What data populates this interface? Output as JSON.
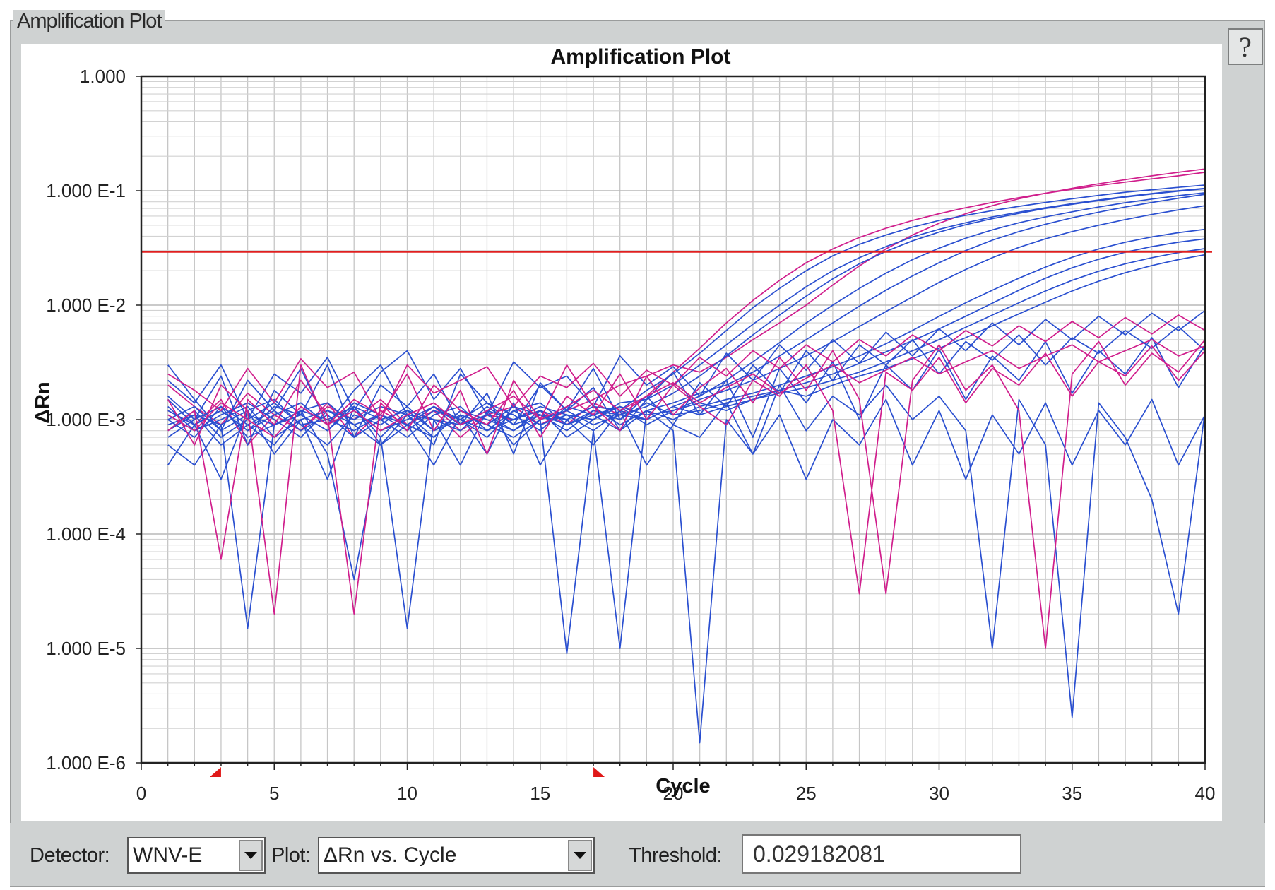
{
  "window": {
    "title": "Amplification Plot",
    "help_label": "?"
  },
  "controls": {
    "detector_label": "Detector:",
    "detector_value": "WNV-E",
    "plot_label": "Plot:",
    "plot_value": "ΔRn vs. Cycle",
    "threshold_label": "Threshold:",
    "threshold_value": "0.029182081"
  },
  "chart_data": {
    "type": "line",
    "title": "Amplification Plot",
    "xlabel": "Cycle",
    "ylabel": "ΔRn",
    "xlim": [
      0,
      40
    ],
    "ylim": [
      1e-06,
      1
    ],
    "yscale": "log",
    "x_ticks": [
      0,
      5,
      10,
      15,
      20,
      25,
      30,
      35,
      40
    ],
    "y_ticks": [
      {
        "value": 1,
        "label": "1.000"
      },
      {
        "value": 0.1,
        "label": "1.000 E-1"
      },
      {
        "value": 0.01,
        "label": "1.000 E-2"
      },
      {
        "value": 0.001,
        "label": "1.000 E-3"
      },
      {
        "value": 0.0001,
        "label": "1.000 E-4"
      },
      {
        "value": 1e-05,
        "label": "1.000 E-5"
      },
      {
        "value": 1e-06,
        "label": "1.000 E-6"
      }
    ],
    "grid": true,
    "threshold": 0.029182081,
    "baseline_markers": [
      3,
      17
    ],
    "colors": {
      "blue": "#2a4fd0",
      "magenta": "#d01e8c",
      "threshold": "#e02020"
    },
    "series": [
      {
        "color": "magenta",
        "values": [
          0.0012,
          0.0009,
          0.0015,
          0.0006,
          0.0011,
          0.0008,
          0.0014,
          0.0007,
          0.0012,
          0.0009,
          0.0013,
          0.0008,
          0.0011,
          0.001,
          0.0012,
          0.0009,
          0.0014,
          0.0011,
          0.0016,
          0.0026,
          0.0042,
          0.007,
          0.011,
          0.0165,
          0.0235,
          0.031,
          0.039,
          0.047,
          0.055,
          0.063,
          0.071,
          0.079,
          0.087,
          0.095,
          0.103,
          0.111,
          0.119,
          0.127,
          0.135,
          0.145
        ]
      },
      {
        "color": "magenta",
        "values": [
          0.002,
          0.0013,
          0.0009,
          0.0017,
          0.0011,
          0.0008,
          0.0013,
          0.001,
          0.0015,
          0.0009,
          0.0012,
          0.0007,
          0.0011,
          0.0013,
          0.0009,
          0.0012,
          0.0015,
          0.002,
          0.0024,
          0.003,
          0.0026,
          0.0035,
          0.005,
          0.007,
          0.01,
          0.015,
          0.022,
          0.031,
          0.041,
          0.052,
          0.063,
          0.074,
          0.085,
          0.095,
          0.105,
          0.115,
          0.125,
          0.135,
          0.145,
          0.155
        ]
      },
      {
        "color": "blue",
        "values": [
          0.001,
          0.0007,
          0.0013,
          0.0009,
          0.0006,
          0.0012,
          0.001,
          0.0008,
          0.0011,
          0.0009,
          0.0007,
          0.0012,
          0.001,
          0.0008,
          0.0011,
          0.001,
          0.0013,
          0.0012,
          0.0018,
          0.0025,
          0.0038,
          0.006,
          0.0095,
          0.014,
          0.02,
          0.027,
          0.034,
          0.041,
          0.048,
          0.055,
          0.061,
          0.067,
          0.073,
          0.079,
          0.085,
          0.091,
          0.097,
          0.102,
          0.107,
          0.112
        ]
      },
      {
        "color": "blue",
        "values": [
          0.0008,
          0.0012,
          0.0007,
          0.001,
          0.0014,
          0.0009,
          0.0006,
          0.0011,
          0.0009,
          0.0013,
          0.0008,
          0.001,
          0.0007,
          0.0012,
          0.0009,
          0.0011,
          0.001,
          0.0014,
          0.0015,
          0.002,
          0.003,
          0.0045,
          0.0068,
          0.01,
          0.0145,
          0.02,
          0.026,
          0.0325,
          0.0395,
          0.046,
          0.0525,
          0.059,
          0.065,
          0.071,
          0.077,
          0.083,
          0.089,
          0.0945,
          0.1,
          0.105
        ]
      },
      {
        "color": "blue",
        "values": [
          0.0011,
          0.0008,
          0.001,
          0.0013,
          0.0007,
          0.001,
          0.0012,
          0.0009,
          0.0006,
          0.0011,
          0.001,
          0.0008,
          0.0013,
          0.0009,
          0.0011,
          0.0008,
          0.0012,
          0.0011,
          0.0013,
          0.0017,
          0.0024,
          0.0036,
          0.0055,
          0.0082,
          0.012,
          0.017,
          0.023,
          0.0295,
          0.0365,
          0.0435,
          0.0505,
          0.057,
          0.0635,
          0.07,
          0.076,
          0.082,
          0.088,
          0.0935,
          0.099,
          0.104
        ]
      },
      {
        "color": "blue",
        "values": [
          0.0009,
          0.0011,
          0.0006,
          0.0009,
          0.0012,
          0.0008,
          0.0011,
          0.0007,
          0.001,
          0.0012,
          0.0008,
          0.0011,
          0.0009,
          0.0007,
          0.001,
          0.0012,
          0.0009,
          0.0011,
          0.001,
          0.0013,
          0.0016,
          0.0022,
          0.0032,
          0.0047,
          0.007,
          0.01,
          0.014,
          0.019,
          0.025,
          0.0315,
          0.0385,
          0.0455,
          0.0525,
          0.059,
          0.0655,
          0.072,
          0.0785,
          0.0845,
          0.0905,
          0.096
        ]
      },
      {
        "color": "blue",
        "values": [
          0.0012,
          0.0009,
          0.0012,
          0.0008,
          0.0011,
          0.0014,
          0.0009,
          0.0012,
          0.0008,
          0.001,
          0.0013,
          0.0009,
          0.0011,
          0.0008,
          0.0012,
          0.001,
          0.0013,
          0.0009,
          0.0012,
          0.0014,
          0.0017,
          0.002,
          0.0026,
          0.0036,
          0.005,
          0.007,
          0.0098,
          0.0135,
          0.018,
          0.0235,
          0.03,
          0.037,
          0.044,
          0.051,
          0.058,
          0.065,
          0.072,
          0.079,
          0.086,
          0.093
        ]
      },
      {
        "color": "blue",
        "values": [
          0.0007,
          0.001,
          0.0013,
          0.0007,
          0.0009,
          0.0011,
          0.0008,
          0.0013,
          0.001,
          0.0007,
          0.0011,
          0.0013,
          0.0008,
          0.001,
          0.0012,
          0.0007,
          0.001,
          0.0013,
          0.0011,
          0.0012,
          0.0015,
          0.0018,
          0.0022,
          0.0028,
          0.0036,
          0.0048,
          0.0065,
          0.0088,
          0.0118,
          0.0158,
          0.0205,
          0.026,
          0.032,
          0.038,
          0.044,
          0.05,
          0.056,
          0.062,
          0.068,
          0.074
        ]
      },
      {
        "color": "blue",
        "values": [
          0.001,
          0.0013,
          0.0008,
          0.0011,
          0.0009,
          0.0012,
          0.0014,
          0.0009,
          0.0011,
          0.0008,
          0.0012,
          0.001,
          0.0014,
          0.0011,
          0.0008,
          0.0013,
          0.0011,
          0.0008,
          0.0012,
          0.001,
          0.0013,
          0.0015,
          0.0017,
          0.002,
          0.0024,
          0.0029,
          0.0036,
          0.0046,
          0.006,
          0.008,
          0.0105,
          0.0135,
          0.0172,
          0.0215,
          0.0262,
          0.031,
          0.0355,
          0.0395,
          0.043,
          0.046
        ]
      },
      {
        "color": "blue",
        "values": [
          0.0013,
          0.0008,
          0.0011,
          0.0014,
          0.001,
          0.0007,
          0.0012,
          0.001,
          0.0013,
          0.0011,
          0.0007,
          0.0012,
          0.0009,
          0.0013,
          0.0011,
          0.0009,
          0.0012,
          0.001,
          0.0014,
          0.0011,
          0.0012,
          0.0014,
          0.0016,
          0.0018,
          0.0021,
          0.0025,
          0.0031,
          0.0039,
          0.0049,
          0.0062,
          0.008,
          0.0104,
          0.0135,
          0.0172,
          0.0212,
          0.0252,
          0.029,
          0.0325,
          0.0355,
          0.038
        ]
      },
      {
        "color": "blue",
        "values": [
          0.0008,
          0.0011,
          0.0009,
          0.0012,
          0.0015,
          0.0009,
          0.001,
          0.0013,
          0.0007,
          0.0012,
          0.001,
          0.0009,
          0.0012,
          0.001,
          0.0013,
          0.0011,
          0.0008,
          0.0012,
          0.001,
          0.0013,
          0.0011,
          0.0013,
          0.0015,
          0.0017,
          0.0019,
          0.0022,
          0.0026,
          0.0032,
          0.004,
          0.005,
          0.0064,
          0.0082,
          0.0105,
          0.0133,
          0.0165,
          0.0198,
          0.023,
          0.026,
          0.0288,
          0.0312
        ]
      },
      {
        "color": "blue",
        "values": [
          0.0015,
          0.0009,
          0.0012,
          0.0008,
          0.0013,
          0.0011,
          0.0008,
          0.0014,
          0.0011,
          0.0009,
          0.0013,
          0.001,
          0.0008,
          0.0012,
          0.0014,
          0.0009,
          0.0011,
          0.0013,
          0.0009,
          0.0012,
          0.0014,
          0.0012,
          0.0015,
          0.0018,
          0.0016,
          0.002,
          0.0024,
          0.0028,
          0.0034,
          0.0042,
          0.0052,
          0.0066,
          0.0084,
          0.0106,
          0.0133,
          0.0162,
          0.0192,
          0.0222,
          0.025,
          0.0276
        ]
      },
      {
        "color": "blue",
        "values": [
          0.0006,
          0.0004,
          0.0009,
          1.5e-05,
          0.0009,
          0.0012,
          0.0005,
          4e-05,
          0.0007,
          1.5e-05,
          0.001,
          0.0004,
          0.0012,
          0.0006,
          0.001,
          9e-06,
          0.0008,
          1e-05,
          0.0012,
          0.0008,
          1.5e-06,
          0.001,
          0.0005,
          0.002,
          0.0008,
          0.0016,
          0.0011,
          0.002,
          0.001,
          0.0016,
          0.0008,
          1e-05,
          0.0015,
          0.0006,
          2.5e-06,
          0.0014,
          0.0007,
          0.0002,
          2e-05,
          0.0012
        ]
      },
      {
        "color": "blue",
        "values": [
          0.003,
          0.0015,
          0.0008,
          0.0022,
          0.0012,
          0.0028,
          0.0009,
          0.0018,
          0.003,
          0.0011,
          0.0006,
          0.0025,
          0.0014,
          0.0009,
          0.002,
          0.0012,
          0.0028,
          0.001,
          0.0016,
          0.0009,
          0.0021,
          0.0013,
          0.003,
          0.0017,
          0.004,
          0.0022,
          0.0045,
          0.003,
          0.005,
          0.0025,
          0.0048,
          0.0033,
          0.0055,
          0.003,
          0.0052,
          0.0038,
          0.006,
          0.0042,
          0.0065,
          0.004
        ]
      },
      {
        "color": "blue",
        "values": [
          0.0016,
          0.001,
          0.0024,
          0.0006,
          0.0018,
          0.0011,
          0.003,
          0.0007,
          0.002,
          0.0013,
          0.0025,
          0.0009,
          0.0017,
          0.0005,
          0.0021,
          0.0012,
          0.0019,
          0.0008,
          0.0015,
          0.0026,
          0.0011,
          0.0022,
          0.0007,
          0.0028,
          0.0014,
          0.0032,
          0.001,
          0.003,
          0.0018,
          0.0041,
          0.0015,
          0.0036,
          0.0022,
          0.0048,
          0.0017,
          0.004,
          0.0025,
          0.0052,
          0.0019,
          0.0045
        ]
      },
      {
        "color": "blue",
        "values": [
          0.0004,
          0.0009,
          0.0003,
          0.0012,
          0.0005,
          0.001,
          0.0003,
          0.0013,
          0.0006,
          0.0009,
          0.0004,
          0.0011,
          0.0005,
          0.0014,
          0.0004,
          0.001,
          0.0006,
          0.0012,
          0.0004,
          0.0009,
          0.0007,
          0.0014,
          0.0005,
          0.0011,
          0.0003,
          0.001,
          0.0006,
          0.0015,
          0.0004,
          0.0012,
          0.0003,
          0.0011,
          0.0005,
          0.0014,
          0.0004,
          0.0012,
          0.0006,
          0.0015,
          0.0004,
          0.0011
        ]
      },
      {
        "color": "blue",
        "values": [
          0.0022,
          0.0014,
          0.003,
          0.001,
          0.0025,
          0.0017,
          0.0035,
          0.0012,
          0.0026,
          0.004,
          0.0015,
          0.0028,
          0.0011,
          0.0032,
          0.0019,
          0.0024,
          0.0013,
          0.0036,
          0.002,
          0.0029,
          0.0016,
          0.0038,
          0.0022,
          0.0045,
          0.0027,
          0.005,
          0.0031,
          0.0058,
          0.0036,
          0.0062,
          0.004,
          0.007,
          0.0045,
          0.0075,
          0.005,
          0.008,
          0.0055,
          0.0085,
          0.006,
          0.009
        ]
      },
      {
        "color": "magenta",
        "values": [
          0.0015,
          0.0006,
          0.002,
          0.0012,
          2e-05,
          0.003,
          0.0009,
          0.0015,
          0.0011,
          0.0025,
          0.0008,
          0.0018,
          0.0005,
          0.0022,
          0.001,
          0.003,
          0.0013,
          0.0008,
          0.0024,
          0.0011,
          0.0019,
          0.0028,
          0.0014,
          0.0035,
          0.0018,
          0.004,
          0.0015,
          3e-05,
          0.0022,
          0.0045,
          0.0018,
          0.003,
          0.0012,
          1e-05,
          0.0025,
          0.0048,
          0.002,
          0.0038,
          0.0026,
          0.005
        ]
      },
      {
        "color": "magenta",
        "values": [
          0.0008,
          0.0012,
          6e-05,
          0.0015,
          0.0009,
          0.0022,
          0.0011,
          2e-05,
          0.0014,
          0.0008,
          0.002,
          0.0012,
          0.0009,
          0.0018,
          0.0007,
          0.0016,
          0.0011,
          0.0025,
          0.001,
          0.002,
          0.0013,
          0.0009,
          0.0022,
          0.0016,
          0.003,
          0.0012,
          3e-05,
          0.0026,
          0.0018,
          0.0035,
          0.0014,
          0.0028,
          0.002,
          0.0038,
          0.0016,
          0.0032,
          0.0024,
          0.0044,
          0.0022,
          0.004
        ]
      },
      {
        "color": "magenta",
        "values": [
          0.0025,
          0.0018,
          0.0012,
          0.0028,
          0.0014,
          0.0034,
          0.0019,
          0.0026,
          0.001,
          0.003,
          0.0017,
          0.0022,
          0.0029,
          0.0013,
          0.0024,
          0.0019,
          0.0031,
          0.0016,
          0.0027,
          0.002,
          0.0035,
          0.0024,
          0.004,
          0.0028,
          0.0045,
          0.0032,
          0.005,
          0.0036,
          0.0055,
          0.004,
          0.006,
          0.0044,
          0.0066,
          0.0048,
          0.0072,
          0.0052,
          0.0078,
          0.0056,
          0.0082,
          0.006
        ]
      },
      {
        "color": "magenta",
        "values": [
          0.0011,
          0.0008,
          0.0014,
          0.001,
          0.0007,
          0.0013,
          0.0009,
          0.0012,
          0.0008,
          0.0011,
          0.0014,
          0.0009,
          0.0012,
          0.0016,
          0.001,
          0.0013,
          0.0018,
          0.0012,
          0.0016,
          0.0021,
          0.0014,
          0.0019,
          0.0025,
          0.0017,
          0.0023,
          0.003,
          0.0021,
          0.0027,
          0.0035,
          0.0025,
          0.0032,
          0.004,
          0.0028,
          0.0036,
          0.0045,
          0.0032,
          0.004,
          0.005,
          0.0036,
          0.0044
        ]
      }
    ]
  }
}
